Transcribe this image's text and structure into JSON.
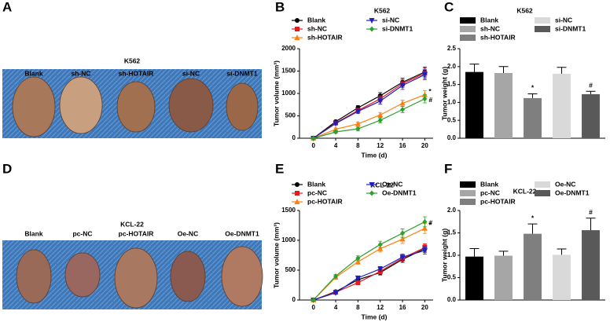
{
  "panel_labels": [
    "A",
    "B",
    "C",
    "D",
    "E",
    "F"
  ],
  "photos": [
    {
      "title": "K562",
      "labels": [
        "Blank",
        "sh-NC",
        "sh-HOTAIR",
        "si-NC",
        "si-DNMT1"
      ]
    },
    {
      "title": "KCL-22",
      "labels": [
        "Blank",
        "pc-NC",
        "pc-HOTAIR",
        "Oe-NC",
        "Oe-DNMT1"
      ]
    }
  ],
  "chart_data": [
    {
      "type": "line",
      "title": "K562",
      "x_label": "Time (d)",
      "y_label": "Tumor volume (mm³)",
      "x": [
        0,
        4,
        8,
        12,
        16,
        20
      ],
      "xlim": [
        -2.5,
        21.5
      ],
      "xticks": [
        0,
        4,
        8,
        12,
        16,
        20
      ],
      "ylim": [
        0,
        2000
      ],
      "yticks": [
        0,
        500,
        1000,
        1500,
        2000
      ],
      "series": [
        {
          "name": "Blank",
          "color": "#000000",
          "marker": "circle",
          "values": [
            0,
            370,
            680,
            950,
            1250,
            1480
          ],
          "errors": [
            10,
            30,
            50,
            70,
            90,
            110
          ]
        },
        {
          "name": "sh-NC",
          "color": "#e41a1c",
          "marker": "square",
          "values": [
            0,
            340,
            620,
            880,
            1220,
            1450
          ],
          "errors": [
            10,
            30,
            50,
            70,
            90,
            110
          ]
        },
        {
          "name": "sh-HOTAIR",
          "color": "#ff7f0e",
          "marker": "triangle-up",
          "values": [
            0,
            200,
            320,
            520,
            780,
            970
          ],
          "errors": [
            10,
            25,
            40,
            55,
            70,
            90
          ],
          "annotation": "*"
        },
        {
          "name": "si-NC",
          "color": "#1f1fbf",
          "marker": "triangle-down",
          "values": [
            0,
            330,
            600,
            830,
            1180,
            1420
          ],
          "errors": [
            10,
            30,
            50,
            70,
            90,
            110
          ]
        },
        {
          "name": "si-DNMT1",
          "color": "#2ca02c",
          "marker": "diamond",
          "values": [
            0,
            140,
            210,
            400,
            640,
            880
          ],
          "errors": [
            10,
            25,
            40,
            55,
            70,
            90
          ],
          "annotation": "#"
        }
      ]
    },
    {
      "type": "bar",
      "title": "K562",
      "y_label": "Tumor weight (g)",
      "ylim": [
        0,
        2.5
      ],
      "yticks": [
        {
          "value": 0,
          "label": "0.0"
        },
        0.5,
        {
          "value": 1,
          "label": "1.0"
        },
        1.5,
        {
          "value": 2,
          "label": "2.0"
        },
        2.5
      ],
      "series": [
        {
          "name": "Blank",
          "color": "#000000",
          "values": [
            1.85
          ],
          "errors": [
            0.22
          ]
        },
        {
          "name": "sh-NC",
          "color": "#a6a6a6",
          "values": [
            1.82
          ],
          "errors": [
            0.18
          ]
        },
        {
          "name": "sh-HOTAIR",
          "color": "#7f7f7f",
          "values": [
            1.12
          ],
          "errors": [
            0.12
          ],
          "annotation": "*"
        },
        {
          "name": "si-NC",
          "color": "#d9d9d9",
          "values": [
            1.8
          ],
          "errors": [
            0.18
          ]
        },
        {
          "name": "si-DNMT1",
          "color": "#595959",
          "values": [
            1.23
          ],
          "errors": [
            0.08
          ],
          "annotation": "#"
        }
      ]
    },
    {
      "type": "line",
      "title": "KCL-22",
      "x_label": "Time (d)",
      "y_label": "Tumor volume (mm³)",
      "x": [
        0,
        4,
        8,
        12,
        16,
        20
      ],
      "xlim": [
        -2.5,
        21.5
      ],
      "xticks": [
        0,
        4,
        8,
        12,
        16,
        20
      ],
      "ylim": [
        0,
        1500
      ],
      "yticks": [
        0,
        500,
        1000,
        1500
      ],
      "series": [
        {
          "name": "Blank",
          "color": "#000000",
          "marker": "circle",
          "values": [
            0,
            140,
            340,
            460,
            680,
            860
          ],
          "errors": [
            10,
            20,
            30,
            40,
            50,
            60
          ]
        },
        {
          "name": "pc-NC",
          "color": "#e41a1c",
          "marker": "square",
          "values": [
            0,
            130,
            290,
            480,
            700,
            880
          ],
          "errors": [
            10,
            20,
            30,
            40,
            50,
            60
          ]
        },
        {
          "name": "pc-HOTAIR",
          "color": "#ff7f0e",
          "marker": "triangle-up",
          "values": [
            0,
            380,
            640,
            860,
            1020,
            1200
          ],
          "errors": [
            10,
            25,
            40,
            55,
            70,
            85
          ],
          "annotation": "*"
        },
        {
          "name": "Oe-NC",
          "color": "#1f1fbf",
          "marker": "triangle-down",
          "values": [
            0,
            120,
            370,
            520,
            720,
            830
          ],
          "errors": [
            10,
            20,
            30,
            40,
            50,
            60
          ]
        },
        {
          "name": "Oe-DNMT1",
          "color": "#2ca02c",
          "marker": "diamond",
          "values": [
            0,
            400,
            700,
            930,
            1120,
            1310
          ],
          "errors": [
            10,
            25,
            40,
            55,
            70,
            85
          ],
          "annotation": "#"
        }
      ]
    },
    {
      "type": "bar",
      "title": "KCL-22",
      "y_label": "Tumor weight (g)",
      "ylim": [
        0,
        2
      ],
      "yticks": [
        {
          "value": 0,
          "label": "0.0"
        },
        0.5,
        {
          "value": 1,
          "label": "1.0"
        },
        1.5,
        {
          "value": 2,
          "label": "2.0"
        }
      ],
      "series": [
        {
          "name": "Blank",
          "color": "#000000",
          "values": [
            0.97
          ],
          "errors": [
            0.18
          ]
        },
        {
          "name": "pc-NC",
          "color": "#a6a6a6",
          "values": [
            0.99
          ],
          "errors": [
            0.1
          ]
        },
        {
          "name": "pc-HOTAIR",
          "color": "#7f7f7f",
          "values": [
            1.48
          ],
          "errors": [
            0.22
          ],
          "annotation": "*"
        },
        {
          "name": "Oe-NC",
          "color": "#d9d9d9",
          "values": [
            1.01
          ],
          "errors": [
            0.13
          ]
        },
        {
          "name": "Oe-DNMT1",
          "color": "#595959",
          "values": [
            1.56
          ],
          "errors": [
            0.27
          ],
          "annotation": "#"
        }
      ]
    }
  ]
}
